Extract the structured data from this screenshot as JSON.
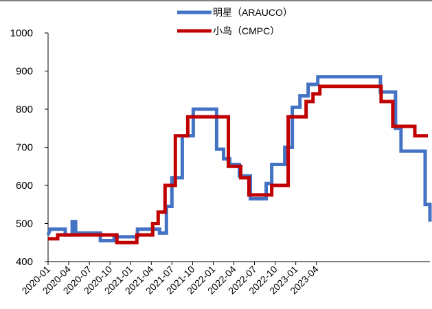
{
  "chart_data": {
    "type": "line",
    "title": "",
    "xlabel": "",
    "ylabel": "",
    "ylim": [
      400,
      1000
    ],
    "yticks": [
      400,
      500,
      600,
      700,
      800,
      900,
      1000
    ],
    "x_tick_labels": [
      "2020-01",
      "2020-04",
      "2020-07",
      "2020-10",
      "2021-01",
      "2021-04",
      "2021-07",
      "2021-10",
      "2022-01",
      "2022-04",
      "2022-07",
      "2022-10",
      "2023-01",
      "2023-04"
    ],
    "x_range_months": [
      0,
      41.5
    ],
    "grid": false,
    "legend_position": "top-center",
    "series": [
      {
        "name": "明星（ARAUCO）",
        "color": "#4472C4",
        "step_points": [
          [
            0,
            470
          ],
          [
            0.3,
            485
          ],
          [
            2.5,
            485
          ],
          [
            2.5,
            470
          ],
          [
            3.5,
            470
          ],
          [
            3.5,
            505
          ],
          [
            4.0,
            505
          ],
          [
            4.0,
            475
          ],
          [
            7.6,
            475
          ],
          [
            7.6,
            455
          ],
          [
            9.6,
            455
          ],
          [
            9.6,
            465
          ],
          [
            13.0,
            465
          ],
          [
            13.0,
            485
          ],
          [
            16.2,
            485
          ],
          [
            16.2,
            475
          ],
          [
            17.2,
            475
          ],
          [
            17.2,
            545
          ],
          [
            18.0,
            545
          ],
          [
            18.0,
            620
          ],
          [
            19.5,
            620
          ],
          [
            19.5,
            730
          ],
          [
            21.1,
            730
          ],
          [
            21.1,
            800
          ],
          [
            24.5,
            800
          ],
          [
            24.5,
            695
          ],
          [
            25.5,
            695
          ],
          [
            25.5,
            670
          ],
          [
            26.4,
            670
          ],
          [
            26.4,
            655
          ],
          [
            27.8,
            655
          ],
          [
            27.8,
            625
          ],
          [
            29.4,
            625
          ],
          [
            29.4,
            565
          ],
          [
            31.7,
            565
          ],
          [
            31.7,
            605
          ],
          [
            32.5,
            605
          ],
          [
            32.5,
            655
          ],
          [
            34.4,
            655
          ],
          [
            34.4,
            700
          ],
          [
            35.5,
            700
          ],
          [
            35.5,
            805
          ],
          [
            36.6,
            805
          ],
          [
            36.6,
            835
          ],
          [
            37.8,
            835
          ],
          [
            37.8,
            865
          ],
          [
            39.2,
            865
          ],
          [
            39.2,
            885
          ],
          [
            48.3,
            885
          ],
          [
            48.3,
            845
          ],
          [
            50.5,
            845
          ],
          [
            50.5,
            750
          ],
          [
            51.3,
            750
          ],
          [
            51.3,
            690
          ],
          [
            54.8,
            690
          ],
          [
            54.8,
            550
          ],
          [
            55.5,
            550
          ],
          [
            55.5,
            505
          ]
        ]
      },
      {
        "name": "小鸟（CMPC）",
        "color": "#C00000",
        "step_points": [
          [
            0,
            460
          ],
          [
            1.4,
            460
          ],
          [
            1.4,
            470
          ],
          [
            10.0,
            470
          ],
          [
            10.0,
            450
          ],
          [
            12.9,
            450
          ],
          [
            12.9,
            470
          ],
          [
            15.2,
            470
          ],
          [
            15.2,
            500
          ],
          [
            16.0,
            500
          ],
          [
            16.0,
            530
          ],
          [
            17.0,
            530
          ],
          [
            17.0,
            600
          ],
          [
            18.5,
            600
          ],
          [
            18.5,
            730
          ],
          [
            20.3,
            730
          ],
          [
            20.3,
            780
          ],
          [
            26.2,
            780
          ],
          [
            26.2,
            650
          ],
          [
            28.0,
            650
          ],
          [
            28.0,
            620
          ],
          [
            29.2,
            620
          ],
          [
            29.2,
            575
          ],
          [
            32.5,
            575
          ],
          [
            32.5,
            600
          ],
          [
            34.9,
            600
          ],
          [
            34.9,
            780
          ],
          [
            37.5,
            780
          ],
          [
            37.5,
            820
          ],
          [
            38.5,
            820
          ],
          [
            38.5,
            840
          ],
          [
            39.5,
            840
          ],
          [
            39.5,
            860
          ],
          [
            48.4,
            860
          ],
          [
            48.4,
            820
          ],
          [
            50.1,
            820
          ],
          [
            50.1,
            755
          ],
          [
            53.3,
            755
          ],
          [
            53.3,
            730
          ],
          [
            55.2,
            730
          ]
        ]
      }
    ]
  }
}
